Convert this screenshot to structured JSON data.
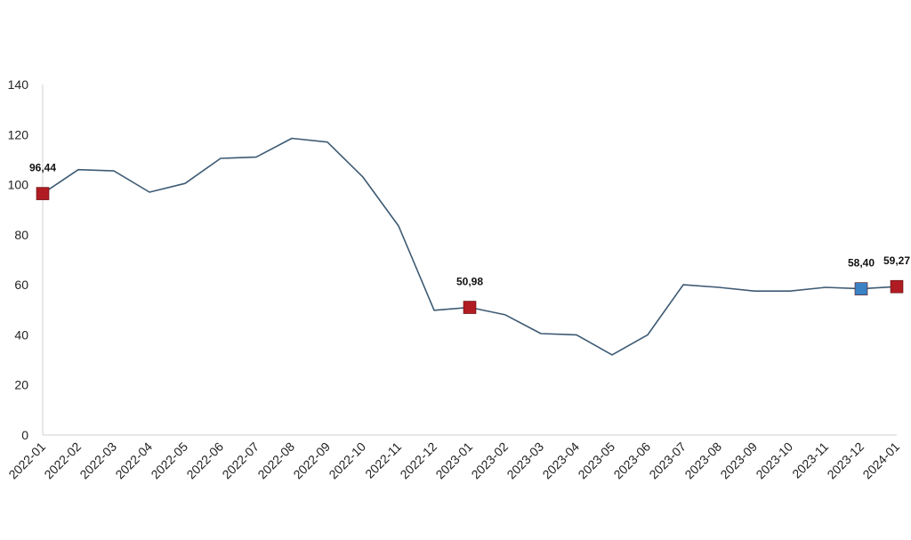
{
  "chart_data": {
    "type": "line",
    "categories": [
      "2022-01",
      "2022-02",
      "2022-03",
      "2022-04",
      "2022-05",
      "2022-06",
      "2022-07",
      "2022-08",
      "2022-09",
      "2022-10",
      "2022-11",
      "2022-12",
      "2023-01",
      "2023-02",
      "2023-03",
      "2023-04",
      "2023-05",
      "2023-06",
      "2023-07",
      "2023-08",
      "2023-09",
      "2023-10",
      "2023-11",
      "2023-12",
      "2024-01"
    ],
    "series": [
      {
        "values": [
          96.44,
          106,
          105.5,
          97,
          100.5,
          110.5,
          111,
          118.5,
          117,
          103,
          83.5,
          49.8,
          50.98,
          48,
          40.5,
          40,
          32,
          40,
          60,
          59,
          57.5,
          57.5,
          59,
          58.4,
          59.27
        ],
        "color": "#3d5a73"
      }
    ],
    "ylim": [
      0,
      140
    ],
    "yticks": [
      0,
      20,
      40,
      60,
      80,
      100,
      120,
      140
    ],
    "grid": false,
    "markers": [
      {
        "index": 0,
        "label": "96,44",
        "color": "#b01c22"
      },
      {
        "index": 12,
        "label": "50,98",
        "color": "#b01c22"
      },
      {
        "index": 23,
        "label": "58,40",
        "color": "#3a82c4"
      },
      {
        "index": 24,
        "label": "59,27",
        "color": "#b01c22"
      }
    ]
  }
}
